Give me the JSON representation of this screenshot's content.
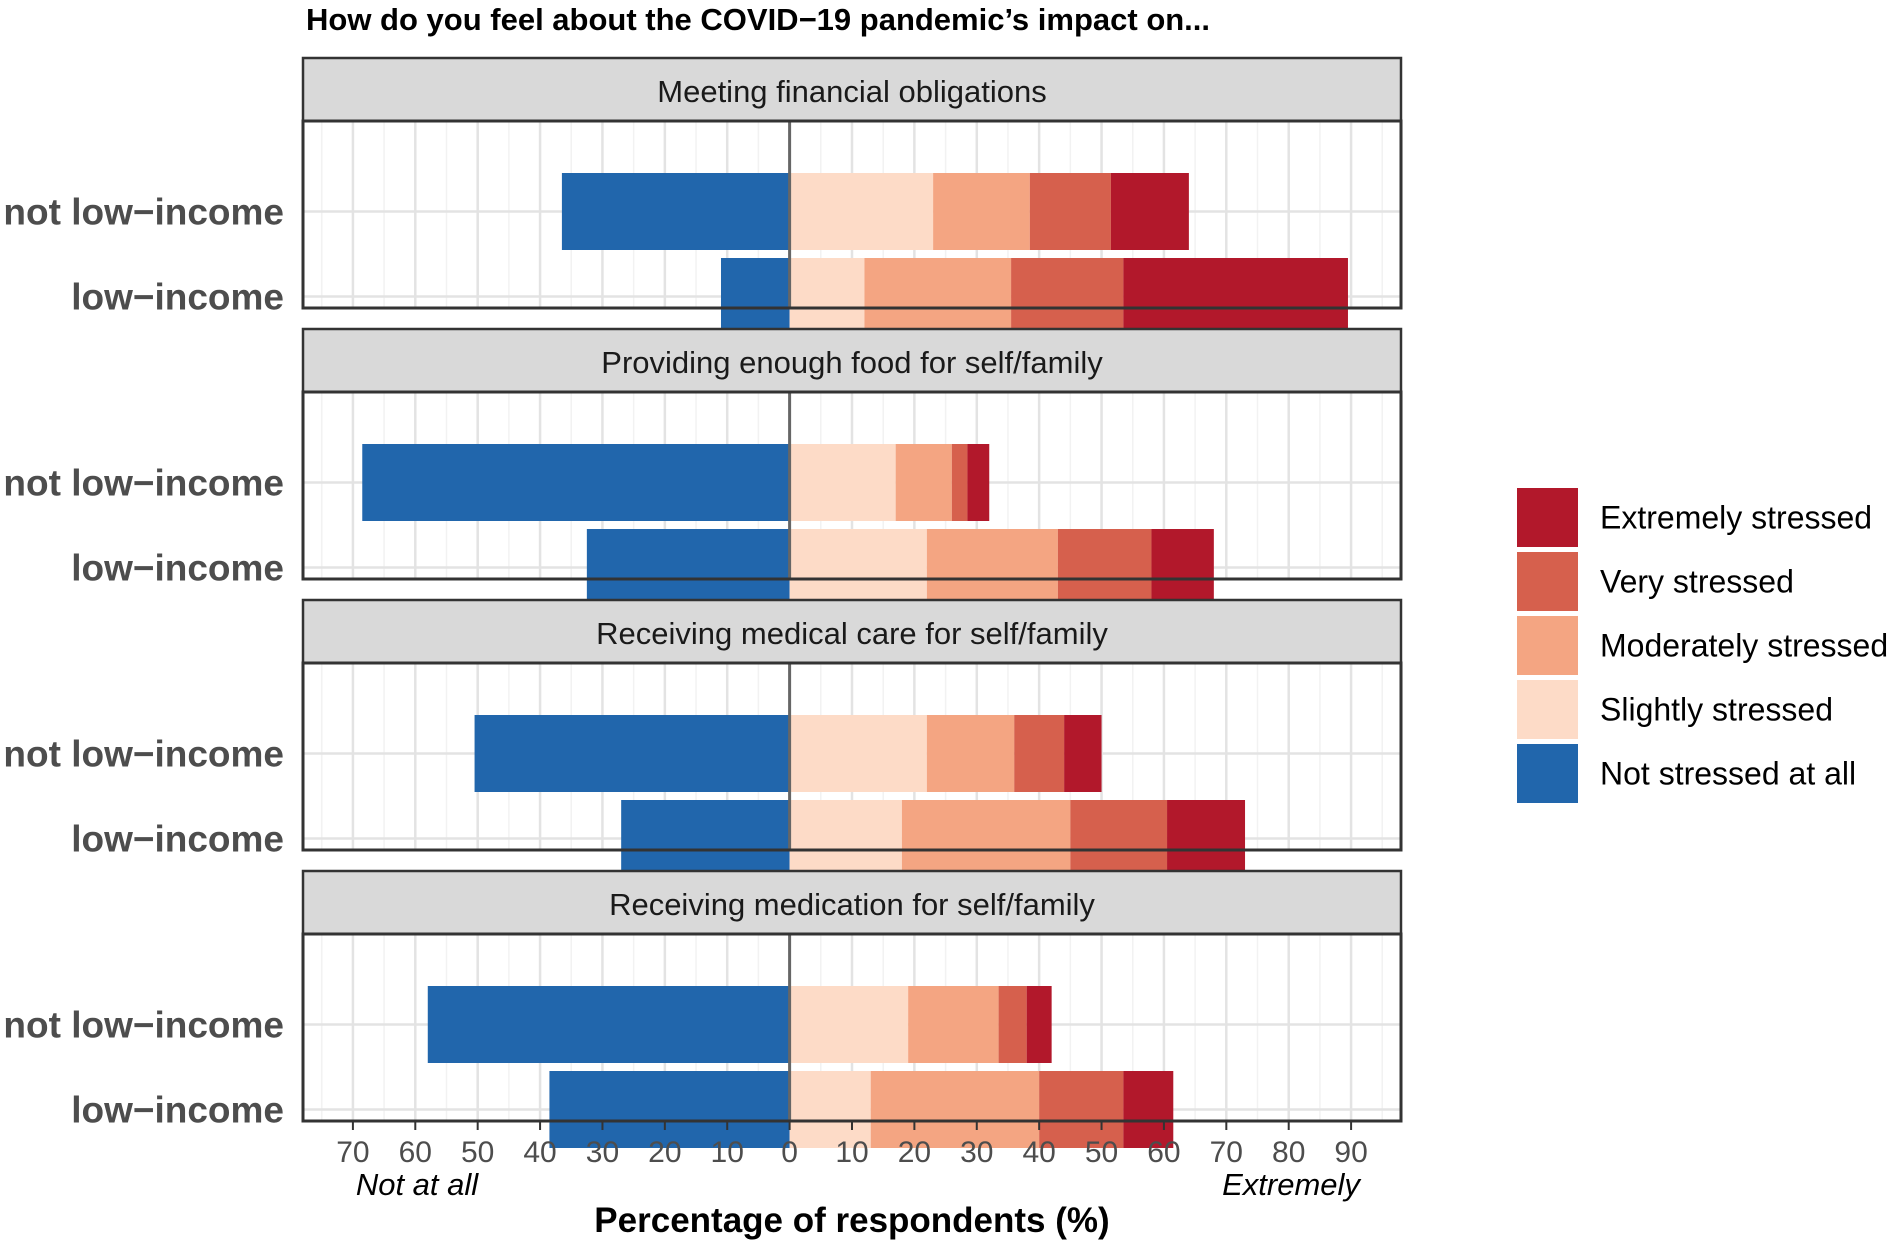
{
  "chart_data": {
    "type": "bar",
    "orientation": "horizontal",
    "stacked": true,
    "diverging": true,
    "title": "How do you feel about the COVID−19 pandemic’s impact on...",
    "xlabel": "Percentage of respondents (%)",
    "ylabel": "",
    "xlim": [
      -78,
      98
    ],
    "x_ticks": [
      -70,
      -60,
      -50,
      -40,
      -30,
      -20,
      -10,
      0,
      10,
      20,
      30,
      40,
      50,
      60,
      70,
      80,
      90
    ],
    "x_tick_labels": [
      "70",
      "60",
      "50",
      "40",
      "30",
      "20",
      "10",
      "0",
      "10",
      "20",
      "30",
      "40",
      "50",
      "60",
      "70",
      "80",
      "90"
    ],
    "left_note": "Not at all",
    "right_note": "Extremely",
    "grid": true,
    "legend_position": "right",
    "categories": [
      "not low−income",
      "low−income"
    ],
    "series": [
      {
        "key": "not_stressed",
        "name": "Not stressed at all",
        "color": "#2166ac"
      },
      {
        "key": "slightly",
        "name": "Slightly stressed",
        "color": "#fddbc7"
      },
      {
        "key": "moderately",
        "name": "Moderately stressed",
        "color": "#f4a582"
      },
      {
        "key": "very",
        "name": "Very stressed",
        "color": "#d6604d"
      },
      {
        "key": "extremely",
        "name": "Extremely stressed",
        "color": "#b2182b"
      }
    ],
    "legend_order": [
      "Extremely stressed",
      "Very stressed",
      "Moderately stressed",
      "Slightly stressed",
      "Not stressed at all"
    ],
    "panels": [
      {
        "title": "Meeting financial obligations",
        "rows": [
          {
            "group": "not low−income",
            "not_stressed": 36.5,
            "slightly": 23,
            "moderately": 15.5,
            "very": 13,
            "extremely": 12.5
          },
          {
            "group": "low−income",
            "not_stressed": 11,
            "slightly": 12,
            "moderately": 23.5,
            "very": 18,
            "extremely": 36
          }
        ]
      },
      {
        "title": "Providing enough food for self/family",
        "rows": [
          {
            "group": "not low−income",
            "not_stressed": 68.5,
            "slightly": 17,
            "moderately": 9,
            "very": 2.5,
            "extremely": 3.5
          },
          {
            "group": "low−income",
            "not_stressed": 32.5,
            "slightly": 22,
            "moderately": 21,
            "very": 15,
            "extremely": 10
          }
        ]
      },
      {
        "title": "Receiving medical care for self/family",
        "rows": [
          {
            "group": "not low−income",
            "not_stressed": 50.5,
            "slightly": 22,
            "moderately": 14,
            "very": 8,
            "extremely": 6
          },
          {
            "group": "low−income",
            "not_stressed": 27,
            "slightly": 18,
            "moderately": 27,
            "very": 15.5,
            "extremely": 12.5
          }
        ]
      },
      {
        "title": "Receiving medication for self/family",
        "rows": [
          {
            "group": "not low−income",
            "not_stressed": 58,
            "slightly": 19,
            "moderately": 14.5,
            "very": 4.5,
            "extremely": 4
          },
          {
            "group": "low−income",
            "not_stressed": 38.5,
            "slightly": 13,
            "moderately": 27,
            "very": 13.5,
            "extremely": 8
          }
        ]
      }
    ]
  }
}
